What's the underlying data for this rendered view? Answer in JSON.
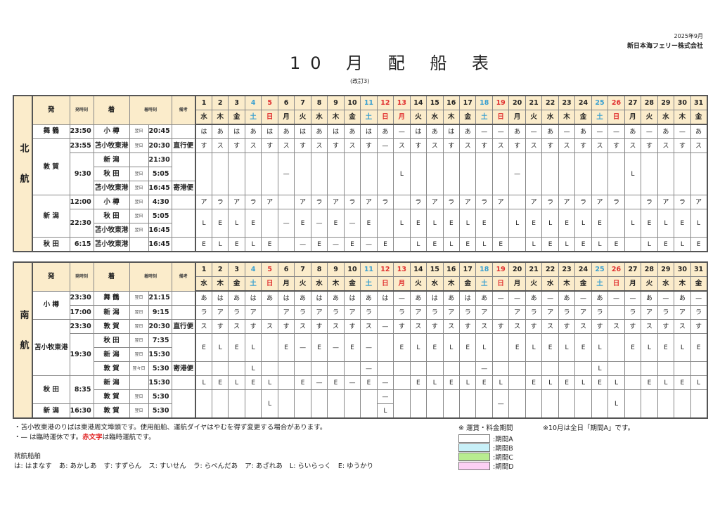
{
  "header": {
    "date": "2025年9月",
    "company": "新日本海フェリー株式会社",
    "title": "10 月 配 船 表",
    "revision": "(改訂3)"
  },
  "colors": {
    "header_bg": "#fbeccb",
    "sat": "#3aa0d0",
    "sun": "#e03030",
    "holiday": "#e03030"
  },
  "columns": {
    "dep": "発",
    "dep_time": "発時刻",
    "arr": "着",
    "arr_time": "着時刻",
    "note": "備考"
  },
  "days": [
    {
      "d": "1",
      "w": "水",
      "kind": "weekday"
    },
    {
      "d": "2",
      "w": "木",
      "kind": "weekday"
    },
    {
      "d": "3",
      "w": "金",
      "kind": "weekday"
    },
    {
      "d": "4",
      "w": "土",
      "kind": "sat"
    },
    {
      "d": "5",
      "w": "日",
      "kind": "sun"
    },
    {
      "d": "6",
      "w": "月",
      "kind": "weekday"
    },
    {
      "d": "7",
      "w": "火",
      "kind": "weekday"
    },
    {
      "d": "8",
      "w": "水",
      "kind": "weekday"
    },
    {
      "d": "9",
      "w": "木",
      "kind": "weekday"
    },
    {
      "d": "10",
      "w": "金",
      "kind": "weekday"
    },
    {
      "d": "11",
      "w": "土",
      "kind": "sat"
    },
    {
      "d": "12",
      "w": "日",
      "kind": "sun"
    },
    {
      "d": "13",
      "w": "月",
      "kind": "holiday"
    },
    {
      "d": "14",
      "w": "火",
      "kind": "weekday"
    },
    {
      "d": "15",
      "w": "水",
      "kind": "weekday"
    },
    {
      "d": "16",
      "w": "木",
      "kind": "weekday"
    },
    {
      "d": "17",
      "w": "金",
      "kind": "weekday"
    },
    {
      "d": "18",
      "w": "土",
      "kind": "sat"
    },
    {
      "d": "19",
      "w": "日",
      "kind": "sun"
    },
    {
      "d": "20",
      "w": "月",
      "kind": "weekday"
    },
    {
      "d": "21",
      "w": "火",
      "kind": "weekday"
    },
    {
      "d": "22",
      "w": "水",
      "kind": "weekday"
    },
    {
      "d": "23",
      "w": "木",
      "kind": "weekday"
    },
    {
      "d": "24",
      "w": "金",
      "kind": "weekday"
    },
    {
      "d": "25",
      "w": "土",
      "kind": "sat"
    },
    {
      "d": "26",
      "w": "日",
      "kind": "sun"
    },
    {
      "d": "27",
      "w": "月",
      "kind": "weekday"
    },
    {
      "d": "28",
      "w": "火",
      "kind": "weekday"
    },
    {
      "d": "29",
      "w": "水",
      "kind": "weekday"
    },
    {
      "d": "30",
      "w": "木",
      "kind": "weekday"
    },
    {
      "d": "31",
      "w": "金",
      "kind": "weekday"
    }
  ],
  "tables": [
    {
      "region": "北航",
      "rows": [
        {
          "dep": "舞 鶴",
          "dep_time": "23:50",
          "arr": "小 樽",
          "arr_day": "翌日",
          "arr_time": "20:45",
          "note": "",
          "ships": [
            "は",
            "あ",
            "は",
            "あ",
            "は",
            "あ",
            "は",
            "あ",
            "は",
            "あ",
            "は",
            "あ",
            "—",
            "は",
            "あ",
            "は",
            "あ",
            "—",
            "—",
            "あ",
            "—",
            "あ",
            "—",
            "あ",
            "—",
            "—",
            "あ",
            "—",
            "あ",
            "—",
            "あ"
          ]
        },
        {
          "dep": "敦 賀",
          "dep_time": "23:55",
          "arr": "苫小牧東港",
          "arr_day": "翌日",
          "arr_time": "20:30",
          "note": "直行便",
          "ships": [
            "す",
            "ス",
            "す",
            "ス",
            "す",
            "ス",
            "す",
            "ス",
            "す",
            "ス",
            "す",
            "—",
            "ス",
            "す",
            "ス",
            "す",
            "ス",
            "す",
            "ス",
            "す",
            "ス",
            "す",
            "ス",
            "す",
            "ス",
            "す",
            "ス",
            "す",
            "ス",
            "す",
            "ス"
          ]
        },
        {
          "dep": null,
          "dep_time": "9:30",
          "arr": "新 潟",
          "arr_day": "",
          "arr_time": "21:30",
          "note": "",
          "ships": [
            "",
            "",
            "",
            "",
            "",
            "—",
            "",
            "",
            "",
            "",
            "",
            "",
            "L",
            "",
            "",
            "",
            "",
            "",
            "",
            "—",
            "",
            "",
            "",
            "",
            "",
            "",
            "L",
            "",
            "",
            "",
            ""
          ]
        },
        {
          "dep": null,
          "dep_time": null,
          "arr": "秋 田",
          "arr_day": "翌日",
          "arr_time": "5:05",
          "note": null,
          "ships": null
        },
        {
          "dep": null,
          "dep_time": null,
          "arr": "苫小牧東港",
          "arr_day": "翌日",
          "arr_time": "16:45",
          "note": "寄港便",
          "ships": null
        },
        {
          "dep": "新 潟",
          "dep_time": "12:00",
          "arr": "小 樽",
          "arr_day": "翌日",
          "arr_time": "4:30",
          "note": "",
          "ships": [
            "ア",
            "ラ",
            "ア",
            "ラ",
            "ア",
            "",
            "ア",
            "ラ",
            "ア",
            "ラ",
            "ア",
            "ラ",
            "",
            "ラ",
            "ア",
            "ラ",
            "ア",
            "ラ",
            "ア",
            "",
            "ア",
            "ラ",
            "ア",
            "ラ",
            "ア",
            "ラ",
            "",
            "ラ",
            "ア",
            "ラ",
            "ア"
          ]
        },
        {
          "dep": null,
          "dep_time": "22:30",
          "arr": "秋 田",
          "arr_day": "翌日",
          "arr_time": "5:05",
          "note": "",
          "ships": [
            "L",
            "E",
            "L",
            "E",
            "",
            "—",
            "E",
            "—",
            "E",
            "—",
            "E",
            "",
            "L",
            "E",
            "L",
            "E",
            "L",
            "E",
            "",
            "L",
            "E",
            "L",
            "E",
            "L",
            "E",
            "",
            "L",
            "E",
            "L",
            "E",
            "L"
          ]
        },
        {
          "dep": null,
          "dep_time": null,
          "arr": "苫小牧東港",
          "arr_day": "翌日",
          "arr_time": "16:45",
          "note": null,
          "ships": null
        },
        {
          "dep": "秋 田",
          "dep_time": "6:15",
          "arr": "苫小牧東港",
          "arr_day": "",
          "arr_time": "16:45",
          "note": "",
          "ships": [
            "E",
            "L",
            "E",
            "L",
            "E",
            "",
            "—",
            "E",
            "—",
            "E",
            "—",
            "E",
            "",
            "L",
            "E",
            "L",
            "E",
            "L",
            "E",
            "",
            "L",
            "E",
            "L",
            "E",
            "L",
            "E",
            "",
            "L",
            "E",
            "L",
            "E"
          ]
        }
      ]
    },
    {
      "region": "南航",
      "rows": [
        {
          "dep": "小 樽",
          "dep_time": "23:30",
          "arr": "舞 鶴",
          "arr_day": "翌日",
          "arr_time": "21:15",
          "note": "",
          "ships": [
            "あ",
            "は",
            "あ",
            "は",
            "あ",
            "は",
            "あ",
            "は",
            "あ",
            "は",
            "あ",
            "は",
            "—",
            "あ",
            "は",
            "あ",
            "は",
            "あ",
            "—",
            "—",
            "あ",
            "—",
            "あ",
            "—",
            "あ",
            "—",
            "—",
            "あ",
            "—",
            "あ",
            "—"
          ]
        },
        {
          "dep": null,
          "dep_time": "17:00",
          "arr": "新 潟",
          "arr_day": "翌日",
          "arr_time": "9:15",
          "note": "",
          "ships": [
            "ラ",
            "ア",
            "ラ",
            "ア",
            "",
            "ア",
            "ラ",
            "ア",
            "ラ",
            "ア",
            "ラ",
            "",
            "ラ",
            "ア",
            "ラ",
            "ア",
            "ラ",
            "ア",
            "",
            "ア",
            "ラ",
            "ア",
            "ラ",
            "ア",
            "ラ",
            "",
            "ラ",
            "ア",
            "ラ",
            "ア",
            "ラ"
          ]
        },
        {
          "dep": "苫小牧東港",
          "dep_time": "23:30",
          "arr": "敦 賀",
          "arr_day": "翌日",
          "arr_time": "20:30",
          "note": "直行便",
          "ships": [
            "ス",
            "す",
            "ス",
            "す",
            "ス",
            "す",
            "ス",
            "す",
            "ス",
            "す",
            "ス",
            "—",
            "す",
            "ス",
            "す",
            "ス",
            "す",
            "ス",
            "す",
            "ス",
            "す",
            "ス",
            "す",
            "ス",
            "す",
            "ス",
            "す",
            "ス",
            "す",
            "ス",
            "す"
          ]
        },
        {
          "dep": null,
          "dep_time": "19:30",
          "arr": "秋 田",
          "arr_day": "翌日",
          "arr_time": "7:35",
          "note": "",
          "ships": [
            "E",
            "L",
            "E",
            "L",
            "",
            "E",
            "—",
            "E",
            "—",
            "E",
            "—",
            "",
            "E",
            "L",
            "E",
            "L",
            "E",
            "L",
            "",
            "E",
            "L",
            "E",
            "L",
            "E",
            "L",
            "",
            "E",
            "L",
            "E",
            "L",
            "E"
          ]
        },
        {
          "dep": null,
          "dep_time": null,
          "arr": "新 潟",
          "arr_day": "翌日",
          "arr_time": "15:30",
          "note": null,
          "ships": null
        },
        {
          "dep": null,
          "dep_time": null,
          "arr": "敦 賀",
          "arr_day": "翌々日",
          "arr_time": "5:30",
          "note": "寄港便",
          "ships": [
            "",
            "",
            "",
            "L",
            "",
            "",
            "",
            "",
            "",
            "",
            "—",
            "",
            "",
            "",
            "",
            "",
            "",
            "—",
            "",
            "",
            "",
            "",
            "",
            "",
            "L",
            "",
            "",
            "",
            "",
            "",
            ""
          ]
        },
        {
          "dep": "秋 田",
          "dep_time": "8:35",
          "arr": "新 潟",
          "arr_day": "",
          "arr_time": "15:30",
          "note": "",
          "ships": [
            "L",
            "E",
            "L",
            "E",
            "L",
            "",
            "E",
            "—",
            "E",
            "—",
            "E",
            "—",
            "",
            "E",
            "L",
            "E",
            "L",
            "E",
            "L",
            "",
            "E",
            "L",
            "E",
            "L",
            "E",
            "L",
            "",
            "E",
            "L",
            "E",
            "L"
          ]
        },
        {
          "dep": null,
          "dep_time": null,
          "arr": "敦 賀",
          "arr_day": "翌日",
          "arr_time": "5:30",
          "note": "",
          "ships": [
            "",
            "",
            "",
            "",
            "L",
            "",
            "",
            "",
            "",
            "",
            "",
            "—",
            "",
            "",
            "",
            "",
            "",
            "",
            "—",
            "",
            "",
            "",
            "",
            "",
            "",
            "L",
            "",
            "",
            "",
            "",
            ""
          ]
        },
        {
          "dep": "新 潟",
          "dep_time": "16:30",
          "arr": "敦 賀",
          "arr_day": "翌日",
          "arr_time": "5:30",
          "note": null,
          "ships": [
            null,
            null,
            null,
            null,
            null,
            null,
            null,
            null,
            null,
            null,
            null,
            "L",
            null,
            null,
            null,
            null,
            null,
            null,
            null,
            null,
            null,
            null,
            null,
            null,
            null,
            null,
            null,
            null,
            null,
            null,
            null
          ]
        }
      ]
    }
  ],
  "notes": {
    "line1": "・苫小牧東港のりばは東港周文埠頭です。使用船舶、運航ダイヤはやむを得ず変更する場合があります。",
    "line2_a": "・— は臨時運休です。",
    "line2_red": "赤文字",
    "line2_b": "は臨時運航です。"
  },
  "ships_legend": {
    "title": "就航船舶",
    "items": [
      "は: はまなす",
      "あ: あかしあ",
      "す: すずらん",
      "ス: すいせん",
      "ラ: らべんだあ",
      "ア: あざれあ",
      "L: らいらっく",
      "E: ゆうかり"
    ]
  },
  "fare_legend": {
    "title": "※ 運賃・料金期間",
    "note": "※10月は全日「期間A」です。",
    "items": [
      {
        "label": ":期間A",
        "color": "#ffffff"
      },
      {
        "label": ":期間B",
        "color": "#c8f0f8"
      },
      {
        "label": ":期間C",
        "color": "#b8ec90"
      },
      {
        "label": ":期間D",
        "color": "#fcd0f4"
      }
    ]
  }
}
